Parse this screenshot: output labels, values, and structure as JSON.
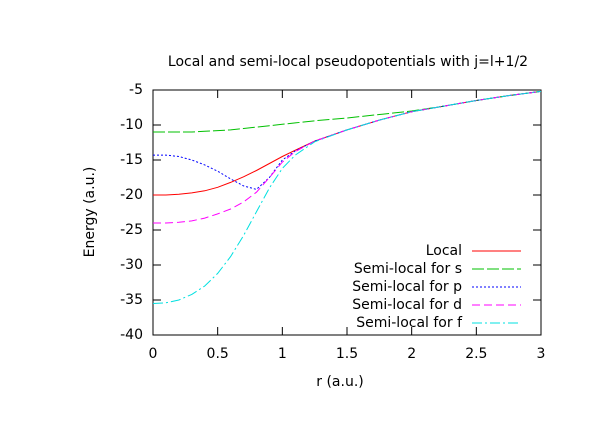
{
  "chart_data": {
    "type": "line",
    "title": "Local and semi-local pseudopotentials with j=l+1/2",
    "x_label": "r (a.u.)",
    "y_label": "Energy (a.u.)",
    "x": [
      0,
      0.1,
      0.2,
      0.3,
      0.4,
      0.5,
      0.6,
      0.7,
      0.8,
      0.9,
      1.0,
      1.1,
      1.25,
      1.5,
      1.75,
      2,
      2.25,
      2.5,
      2.75,
      3
    ],
    "series": [
      {
        "name": "Local",
        "color": "#ff0000",
        "values": [
          -20,
          -20,
          -19.9,
          -19.7,
          -19.4,
          -18.9,
          -18.2,
          -17.4,
          -16.5,
          -15.5,
          -14.5,
          -13.6,
          -12.3,
          -10.7,
          -9.3,
          -8.1,
          -7.3,
          -6.5,
          -5.8,
          -5.2
        ]
      },
      {
        "name": "Semi-local for s",
        "color": "#00c000",
        "values": [
          -11,
          -11,
          -11,
          -11,
          -10.9,
          -10.8,
          -10.7,
          -10.5,
          -10.3,
          -10.1,
          -9.9,
          -9.7,
          -9.4,
          -9,
          -8.5,
          -8,
          -7.3,
          -6.5,
          -5.8,
          -5.2
        ]
      },
      {
        "name": "Semi-local for p",
        "color": "#0000ff",
        "values": [
          -14.3,
          -14.3,
          -14.5,
          -15,
          -15.7,
          -16.6,
          -17.7,
          -18.7,
          -19.2,
          -17.5,
          -15,
          -13.7,
          -12.3,
          -10.7,
          -9.3,
          -8.1,
          -7.3,
          -6.5,
          -5.8,
          -5.2
        ]
      },
      {
        "name": "Semi-local for d",
        "color": "#ff00ff",
        "values": [
          -24,
          -24,
          -23.9,
          -23.7,
          -23.3,
          -22.7,
          -22,
          -21,
          -19.6,
          -17.5,
          -15.3,
          -13.8,
          -12.3,
          -10.7,
          -9.3,
          -8.1,
          -7.3,
          -6.5,
          -5.8,
          -5.2
        ]
      },
      {
        "name": "Semi-local for f",
        "color": "#00e0e0",
        "values": [
          -35.5,
          -35.4,
          -35,
          -34.2,
          -33,
          -31.2,
          -28.8,
          -25.8,
          -22.4,
          -19,
          -16.2,
          -14.3,
          -12.4,
          -10.7,
          -9.3,
          -8.1,
          -7.3,
          -6.5,
          -5.8,
          -5.2
        ]
      }
    ],
    "xlim": [
      0,
      3
    ],
    "xticks": [
      0,
      0.5,
      1,
      1.5,
      2,
      2.5,
      3
    ],
    "ylim": [
      -40,
      -5
    ],
    "yticks": [
      -40,
      -35,
      -30,
      -25,
      -20,
      -15,
      -10,
      -5
    ],
    "grid": false,
    "legend": "lower right"
  }
}
